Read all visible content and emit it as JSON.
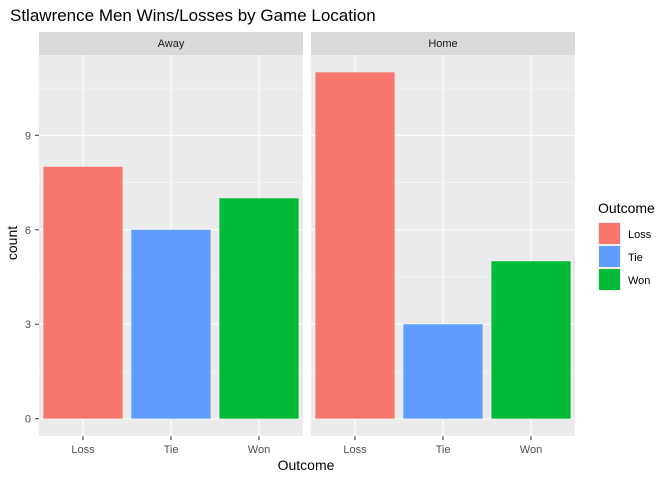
{
  "chart_data": {
    "type": "bar",
    "title": "Stlawrence Men Wins/Losses by Game Location",
    "xlabel": "Outcome",
    "ylabel": "count",
    "categories": [
      "Loss",
      "Tie",
      "Won"
    ],
    "facets": [
      {
        "name": "Away",
        "values": [
          8,
          6,
          7
        ]
      },
      {
        "name": "Home",
        "values": [
          11,
          3,
          5
        ]
      }
    ],
    "yticks": [
      0,
      3,
      6,
      9
    ],
    "ylim": [
      -0.55,
      11.55
    ],
    "grid": true,
    "legend": {
      "title": "Outcome",
      "position": "right",
      "items": [
        {
          "label": "Loss",
          "color": "#F8766D"
        },
        {
          "label": "Tie",
          "color": "#619CFF"
        },
        {
          "label": "Won",
          "color": "#00BA38"
        }
      ]
    },
    "colors": {
      "panel_bg": "#EBEBEB",
      "strip_bg": "#D9D9D9",
      "grid": "#FFFFFF"
    }
  }
}
